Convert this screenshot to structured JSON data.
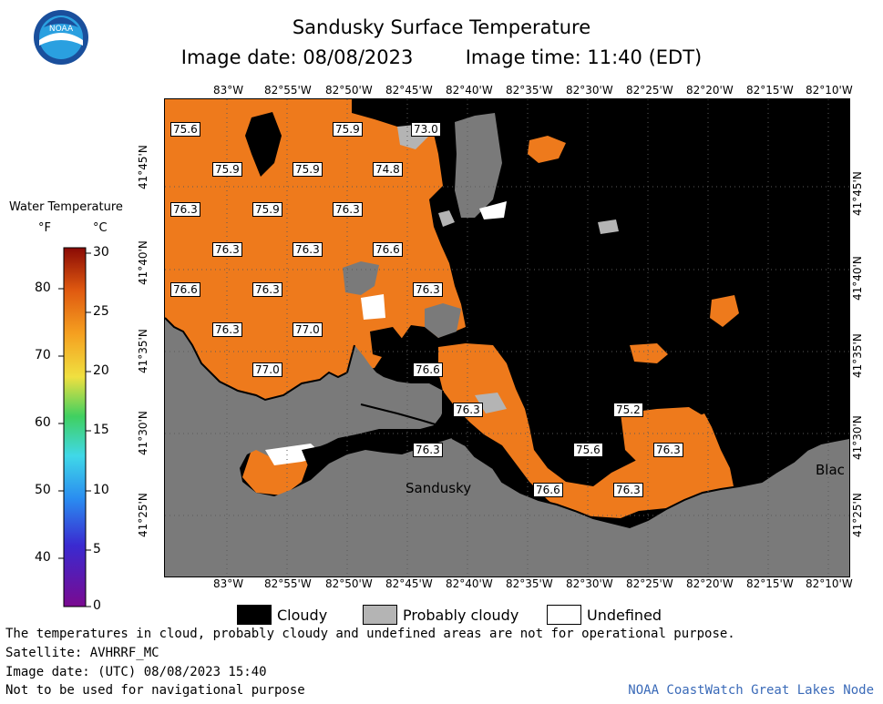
{
  "title": {
    "main": "Sandusky Surface Temperature",
    "image_date": "Image date: 08/08/2023",
    "image_time": "Image time: 11:40 (EDT)"
  },
  "logo_text": "NOAA",
  "legend": {
    "title": "Water Temperature",
    "unit_f": "°F",
    "unit_c": "°C",
    "f_ticks": [
      "80",
      "70",
      "60",
      "50",
      "40"
    ],
    "c_ticks": [
      "30",
      "25",
      "20",
      "15",
      "10",
      "5",
      "0"
    ]
  },
  "axes": {
    "lon_ticks": [
      "83°W",
      "82°55'W",
      "82°50'W",
      "82°45'W",
      "82°40'W",
      "82°35'W",
      "82°30'W",
      "82°25'W",
      "82°20'W",
      "82°15'W",
      "82°10'W"
    ],
    "lat_ticks": [
      "41°45'N",
      "41°40'N",
      "41°35'N",
      "41°30'N",
      "41°25'N"
    ]
  },
  "temperature_labels": [
    "75.6",
    "75.9",
    "73.0",
    "75.9",
    "75.9",
    "74.8",
    "76.3",
    "75.9",
    "76.3",
    "76.3",
    "76.3",
    "76.6",
    "76.6",
    "76.3",
    "76.3",
    "76.3",
    "77.0",
    "77.0",
    "76.6",
    "76.3",
    "75.2",
    "76.3",
    "75.6",
    "76.3",
    "76.6",
    "76.3"
  ],
  "place_labels": {
    "sandusky": "Sandusky",
    "blac": "Blac"
  },
  "key": {
    "cloudy": "Cloudy",
    "probably_cloudy": "Probably cloudy",
    "undefined": "Undefined"
  },
  "footer": {
    "note": "The temperatures in cloud, probably cloudy and undefined areas are not for operational purpose.",
    "satellite": "Satellite: AVHRRF_MC",
    "utc_date": "Image date: (UTC) 08/08/2023  15:40",
    "nav": "Not to be used for navigational purpose",
    "credit": "NOAA CoastWatch Great Lakes Node"
  },
  "colors": {
    "water_orange": "#ee7a1c",
    "land_gray": "#7a7a7a",
    "cloud_black": "#000000",
    "probably_cloudy_gray": "#b4b4b4",
    "undefined_white": "#ffffff",
    "credit_blue": "#3a6ab8"
  }
}
